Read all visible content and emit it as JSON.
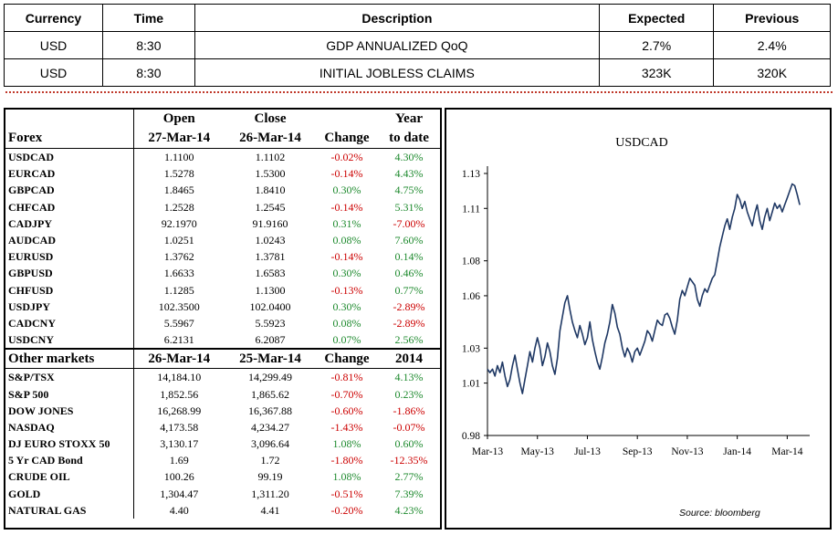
{
  "calendar": {
    "headers": [
      "Currency",
      "Time",
      "Description",
      "Expected",
      "Previous"
    ],
    "rows": [
      {
        "currency": "USD",
        "time": "8:30",
        "description": "GDP ANNUALIZED QoQ",
        "expected": "2.7%",
        "previous": "2.4%"
      },
      {
        "currency": "USD",
        "time": "8:30",
        "description": "INITIAL JOBLESS CLAIMS",
        "expected": "323K",
        "previous": "320K"
      }
    ]
  },
  "forex": {
    "col_open": "Open",
    "col_close": "Close",
    "col_year": "Year",
    "section_label": "Forex",
    "open_date": "27-Mar-14",
    "close_date": "26-Mar-14",
    "change_label": "Change",
    "ytd_label": "to date",
    "rows": [
      {
        "name": "USDCAD",
        "open": "1.1100",
        "close": "1.1102",
        "change": "-0.02%",
        "ytd": "4.30%"
      },
      {
        "name": "EURCAD",
        "open": "1.5278",
        "close": "1.5300",
        "change": "-0.14%",
        "ytd": "4.43%"
      },
      {
        "name": "GBPCAD",
        "open": "1.8465",
        "close": "1.8410",
        "change": "0.30%",
        "ytd": "4.75%"
      },
      {
        "name": "CHFCAD",
        "open": "1.2528",
        "close": "1.2545",
        "change": "-0.14%",
        "ytd": "5.31%"
      },
      {
        "name": "CADJPY",
        "open": "92.1970",
        "close": "91.9160",
        "change": "0.31%",
        "ytd": "-7.00%"
      },
      {
        "name": "AUDCAD",
        "open": "1.0251",
        "close": "1.0243",
        "change": "0.08%",
        "ytd": "7.60%"
      },
      {
        "name": "EURUSD",
        "open": "1.3762",
        "close": "1.3781",
        "change": "-0.14%",
        "ytd": "0.14%"
      },
      {
        "name": "GBPUSD",
        "open": "1.6633",
        "close": "1.6583",
        "change": "0.30%",
        "ytd": "0.46%"
      },
      {
        "name": "CHFUSD",
        "open": "1.1285",
        "close": "1.1300",
        "change": "-0.13%",
        "ytd": "0.77%"
      },
      {
        "name": "USDJPY",
        "open": "102.3500",
        "close": "102.0400",
        "change": "0.30%",
        "ytd": "-2.89%"
      },
      {
        "name": "CADCNY",
        "open": "5.5967",
        "close": "5.5923",
        "change": "0.08%",
        "ytd": "-2.89%"
      },
      {
        "name": "USDCNY",
        "open": "6.2131",
        "close": "6.2087",
        "change": "0.07%",
        "ytd": "2.56%"
      }
    ]
  },
  "other": {
    "section_label": "Other markets",
    "open_date": "26-Mar-14",
    "close_date": "25-Mar-14",
    "change_label": "Change",
    "ytd_label": "2014",
    "rows": [
      {
        "name": "S&P/TSX",
        "open": "14,184.10",
        "close": "14,299.49",
        "change": "-0.81%",
        "ytd": "4.13%"
      },
      {
        "name": "S&P 500",
        "open": "1,852.56",
        "close": "1,865.62",
        "change": "-0.70%",
        "ytd": "0.23%"
      },
      {
        "name": "DOW JONES",
        "open": "16,268.99",
        "close": "16,367.88",
        "change": "-0.60%",
        "ytd": "-1.86%"
      },
      {
        "name": "NASDAQ",
        "open": "4,173.58",
        "close": "4,234.27",
        "change": "-1.43%",
        "ytd": "-0.07%"
      },
      {
        "name": "DJ EURO STOXX 50",
        "open": "3,130.17",
        "close": "3,096.64",
        "change": "1.08%",
        "ytd": "0.60%"
      },
      {
        "name": "5 Yr CAD Bond",
        "open": "1.69",
        "close": "1.72",
        "change": "-1.80%",
        "ytd": "-12.35%"
      },
      {
        "name": "CRUDE OIL",
        "open": "100.26",
        "close": "99.19",
        "change": "1.08%",
        "ytd": "2.77%"
      },
      {
        "name": "GOLD",
        "open": "1,304.47",
        "close": "1,311.20",
        "change": "-0.51%",
        "ytd": "7.39%"
      },
      {
        "name": "NATURAL GAS",
        "open": "4.40",
        "close": "4.41",
        "change": "-0.20%",
        "ytd": "4.23%"
      }
    ]
  },
  "colors": {
    "negative": "#cc0000",
    "positive": "#1e8a2e",
    "line": "#1f3864",
    "separator": "#c0392b"
  },
  "chart_data": {
    "type": "line",
    "title": "USDCAD",
    "source": "Source: bloomberg",
    "ylim": [
      0.98,
      1.13
    ],
    "yticks": [
      0.98,
      1.01,
      1.03,
      1.06,
      1.08,
      1.11,
      1.13
    ],
    "xticks": [
      "Mar-13",
      "May-13",
      "Jul-13",
      "Sep-13",
      "Nov-13",
      "Jan-14",
      "Mar-14"
    ],
    "xlim": [
      0,
      12.9
    ],
    "series": [
      {
        "values": [
          [
            0.0,
            1.018
          ],
          [
            0.1,
            1.016
          ],
          [
            0.2,
            1.018
          ],
          [
            0.3,
            1.014
          ],
          [
            0.4,
            1.02
          ],
          [
            0.5,
            1.016
          ],
          [
            0.6,
            1.022
          ],
          [
            0.7,
            1.014
          ],
          [
            0.8,
            1.008
          ],
          [
            0.9,
            1.012
          ],
          [
            1.0,
            1.02
          ],
          [
            1.1,
            1.026
          ],
          [
            1.2,
            1.018
          ],
          [
            1.3,
            1.01
          ],
          [
            1.4,
            1.004
          ],
          [
            1.5,
            1.012
          ],
          [
            1.6,
            1.02
          ],
          [
            1.7,
            1.028
          ],
          [
            1.8,
            1.022
          ],
          [
            1.9,
            1.03
          ],
          [
            2.0,
            1.036
          ],
          [
            2.1,
            1.03
          ],
          [
            2.2,
            1.02
          ],
          [
            2.3,
            1.025
          ],
          [
            2.4,
            1.033
          ],
          [
            2.5,
            1.028
          ],
          [
            2.6,
            1.02
          ],
          [
            2.7,
            1.015
          ],
          [
            2.8,
            1.024
          ],
          [
            2.9,
            1.04
          ],
          [
            3.0,
            1.048
          ],
          [
            3.1,
            1.056
          ],
          [
            3.2,
            1.06
          ],
          [
            3.3,
            1.052
          ],
          [
            3.4,
            1.045
          ],
          [
            3.5,
            1.04
          ],
          [
            3.6,
            1.036
          ],
          [
            3.7,
            1.043
          ],
          [
            3.8,
            1.038
          ],
          [
            3.9,
            1.032
          ],
          [
            4.0,
            1.036
          ],
          [
            4.1,
            1.045
          ],
          [
            4.2,
            1.035
          ],
          [
            4.3,
            1.028
          ],
          [
            4.4,
            1.022
          ],
          [
            4.5,
            1.018
          ],
          [
            4.6,
            1.025
          ],
          [
            4.7,
            1.033
          ],
          [
            4.8,
            1.038
          ],
          [
            4.9,
            1.045
          ],
          [
            5.0,
            1.055
          ],
          [
            5.1,
            1.05
          ],
          [
            5.2,
            1.042
          ],
          [
            5.3,
            1.038
          ],
          [
            5.4,
            1.03
          ],
          [
            5.5,
            1.025
          ],
          [
            5.6,
            1.03
          ],
          [
            5.7,
            1.027
          ],
          [
            5.8,
            1.022
          ],
          [
            5.9,
            1.028
          ],
          [
            6.0,
            1.03
          ],
          [
            6.1,
            1.026
          ],
          [
            6.2,
            1.03
          ],
          [
            6.3,
            1.034
          ],
          [
            6.4,
            1.04
          ],
          [
            6.5,
            1.038
          ],
          [
            6.6,
            1.034
          ],
          [
            6.7,
            1.04
          ],
          [
            6.8,
            1.046
          ],
          [
            6.9,
            1.044
          ],
          [
            7.0,
            1.043
          ],
          [
            7.1,
            1.049
          ],
          [
            7.2,
            1.05
          ],
          [
            7.3,
            1.047
          ],
          [
            7.4,
            1.042
          ],
          [
            7.5,
            1.038
          ],
          [
            7.6,
            1.046
          ],
          [
            7.7,
            1.058
          ],
          [
            7.8,
            1.063
          ],
          [
            7.9,
            1.06
          ],
          [
            8.0,
            1.065
          ],
          [
            8.1,
            1.07
          ],
          [
            8.2,
            1.068
          ],
          [
            8.3,
            1.066
          ],
          [
            8.4,
            1.058
          ],
          [
            8.5,
            1.054
          ],
          [
            8.6,
            1.06
          ],
          [
            8.7,
            1.064
          ],
          [
            8.8,
            1.062
          ],
          [
            8.9,
            1.066
          ],
          [
            9.0,
            1.07
          ],
          [
            9.1,
            1.072
          ],
          [
            9.2,
            1.08
          ],
          [
            9.3,
            1.088
          ],
          [
            9.4,
            1.094
          ],
          [
            9.5,
            1.1
          ],
          [
            9.6,
            1.104
          ],
          [
            9.7,
            1.098
          ],
          [
            9.8,
            1.105
          ],
          [
            9.9,
            1.11
          ],
          [
            10.0,
            1.118
          ],
          [
            10.1,
            1.115
          ],
          [
            10.2,
            1.11
          ],
          [
            10.3,
            1.114
          ],
          [
            10.4,
            1.108
          ],
          [
            10.5,
            1.104
          ],
          [
            10.6,
            1.1
          ],
          [
            10.7,
            1.107
          ],
          [
            10.8,
            1.112
          ],
          [
            10.9,
            1.103
          ],
          [
            11.0,
            1.098
          ],
          [
            11.1,
            1.105
          ],
          [
            11.2,
            1.11
          ],
          [
            11.3,
            1.103
          ],
          [
            11.4,
            1.108
          ],
          [
            11.5,
            1.113
          ],
          [
            11.6,
            1.11
          ],
          [
            11.7,
            1.112
          ],
          [
            11.8,
            1.108
          ],
          [
            11.9,
            1.112
          ],
          [
            12.0,
            1.116
          ],
          [
            12.1,
            1.12
          ],
          [
            12.2,
            1.124
          ],
          [
            12.3,
            1.123
          ],
          [
            12.4,
            1.118
          ],
          [
            12.5,
            1.112
          ]
        ]
      }
    ]
  }
}
